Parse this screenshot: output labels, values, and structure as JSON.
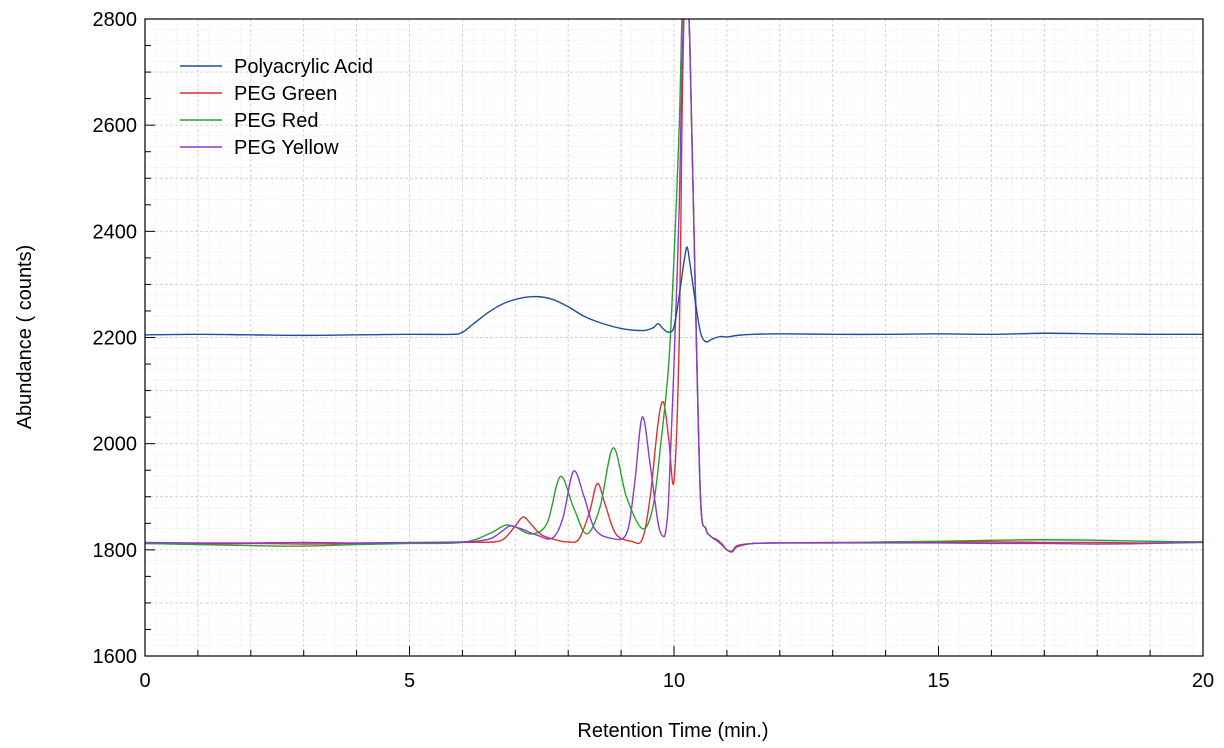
{
  "chart_data": {
    "type": "line",
    "title": "",
    "xlabel": "Retention Time (min.)",
    "ylabel": "Abundance ( counts)",
    "xlim": [
      0,
      20
    ],
    "ylim": [
      1600,
      2800
    ],
    "x_ticks": [
      0,
      5,
      10,
      15,
      20
    ],
    "x_tick_labels": [
      "0",
      "5",
      "10",
      "15",
      "20"
    ],
    "y_ticks": [
      1600,
      1800,
      2000,
      2200,
      2400,
      2600,
      2800
    ],
    "y_tick_labels": [
      "1600",
      "1800",
      "2000",
      "2200",
      "2400",
      "2600",
      "2800"
    ],
    "grid": true,
    "legend_position": "top-left",
    "series": [
      {
        "name": "Polyacrylic Acid",
        "color": "#1f4e9c",
        "x": [
          0,
          1,
          2,
          3,
          4,
          5,
          5.8,
          6.0,
          6.2,
          6.5,
          6.8,
          7.1,
          7.4,
          7.7,
          8.0,
          8.3,
          8.6,
          9.0,
          9.4,
          9.6,
          9.7,
          9.8,
          9.9,
          10.0,
          10.1,
          10.2,
          10.25,
          10.3,
          10.4,
          10.5,
          10.6,
          10.7,
          10.8,
          10.9,
          11.0,
          11.2,
          11.5,
          12,
          13,
          14,
          15,
          16,
          17,
          18,
          19,
          20
        ],
        "y": [
          2205,
          2206,
          2205,
          2204,
          2205,
          2206,
          2206,
          2210,
          2225,
          2248,
          2265,
          2274,
          2277,
          2272,
          2258,
          2240,
          2228,
          2217,
          2213,
          2218,
          2226,
          2216,
          2210,
          2220,
          2280,
          2350,
          2370,
          2340,
          2270,
          2210,
          2192,
          2196,
          2200,
          2202,
          2201,
          2204,
          2206,
          2207,
          2206,
          2206,
          2207,
          2206,
          2208,
          2207,
          2206,
          2206
        ]
      },
      {
        "name": "PEG Green",
        "color": "#e03030",
        "x": [
          0,
          1,
          2,
          3,
          4,
          5,
          6.0,
          6.6,
          6.8,
          7.0,
          7.15,
          7.3,
          7.5,
          7.8,
          8.0,
          8.2,
          8.4,
          8.55,
          8.7,
          8.9,
          9.2,
          9.4,
          9.55,
          9.7,
          9.8,
          9.9,
          10.0,
          10.1,
          10.15,
          10.2,
          10.25,
          10.3,
          10.4,
          10.5,
          10.6,
          10.7,
          10.8,
          10.9,
          11.0,
          11.1,
          11.2,
          11.5,
          12,
          13,
          14,
          15,
          16,
          17,
          18,
          19,
          20
        ],
        "y": [
          1812,
          1811,
          1812,
          1811,
          1812,
          1813,
          1814,
          1815,
          1822,
          1845,
          1862,
          1848,
          1828,
          1818,
          1815,
          1820,
          1870,
          1925,
          1885,
          1830,
          1816,
          1820,
          1900,
          2040,
          2078,
          2010,
          1930,
          2200,
          2600,
          2850,
          2850,
          2750,
          2300,
          1900,
          1840,
          1825,
          1820,
          1812,
          1800,
          1798,
          1808,
          1812,
          1813,
          1814,
          1814,
          1815,
          1815,
          1814,
          1814,
          1813,
          1815
        ]
      },
      {
        "name": "PEG Red",
        "color": "#2ca02c",
        "x": [
          0,
          1,
          2,
          3,
          4,
          5,
          6.0,
          6.5,
          6.8,
          7.0,
          7.3,
          7.6,
          7.85,
          8.1,
          8.35,
          8.6,
          8.85,
          9.1,
          9.4,
          9.6,
          9.75,
          9.9,
          10.0,
          10.1,
          10.15,
          10.2,
          10.25,
          10.3,
          10.4,
          10.5,
          10.6,
          10.7,
          10.8,
          10.9,
          11.0,
          11.1,
          11.2,
          11.5,
          12,
          13,
          14,
          15,
          16,
          17,
          18,
          19,
          20
        ],
        "y": [
          1812,
          1810,
          1808,
          1807,
          1810,
          1812,
          1814,
          1830,
          1846,
          1843,
          1830,
          1850,
          1938,
          1880,
          1830,
          1880,
          1992,
          1900,
          1840,
          1880,
          2000,
          2150,
          2350,
          2600,
          2800,
          2850,
          2850,
          2750,
          2300,
          1900,
          1840,
          1825,
          1818,
          1810,
          1800,
          1797,
          1806,
          1812,
          1813,
          1813,
          1815,
          1816,
          1818,
          1819,
          1818,
          1816,
          1815
        ]
      },
      {
        "name": "PEG Yellow",
        "color": "#8a3ccc",
        "x": [
          0,
          1,
          2,
          3,
          4,
          5,
          6.0,
          6.5,
          6.75,
          6.9,
          7.1,
          7.4,
          7.7,
          7.9,
          8.1,
          8.3,
          8.5,
          8.8,
          9.1,
          9.25,
          9.4,
          9.55,
          9.7,
          9.8,
          9.85,
          9.9,
          10.0,
          10.1,
          10.15,
          10.2,
          10.25,
          10.3,
          10.4,
          10.5,
          10.6,
          10.7,
          10.8,
          10.9,
          11.0,
          11.1,
          11.2,
          11.5,
          12,
          13,
          14,
          15,
          16,
          17,
          18,
          19,
          20
        ],
        "y": [
          1814,
          1813,
          1813,
          1814,
          1813,
          1814,
          1815,
          1820,
          1835,
          1845,
          1840,
          1828,
          1822,
          1860,
          1948,
          1900,
          1840,
          1822,
          1830,
          1920,
          2050,
          1960,
          1850,
          1825,
          1840,
          1900,
          2150,
          2450,
          2700,
          2850,
          2850,
          2750,
          2300,
          1900,
          1840,
          1825,
          1818,
          1810,
          1800,
          1796,
          1806,
          1812,
          1813,
          1813,
          1813,
          1813,
          1812,
          1812,
          1811,
          1812,
          1814
        ]
      }
    ]
  }
}
